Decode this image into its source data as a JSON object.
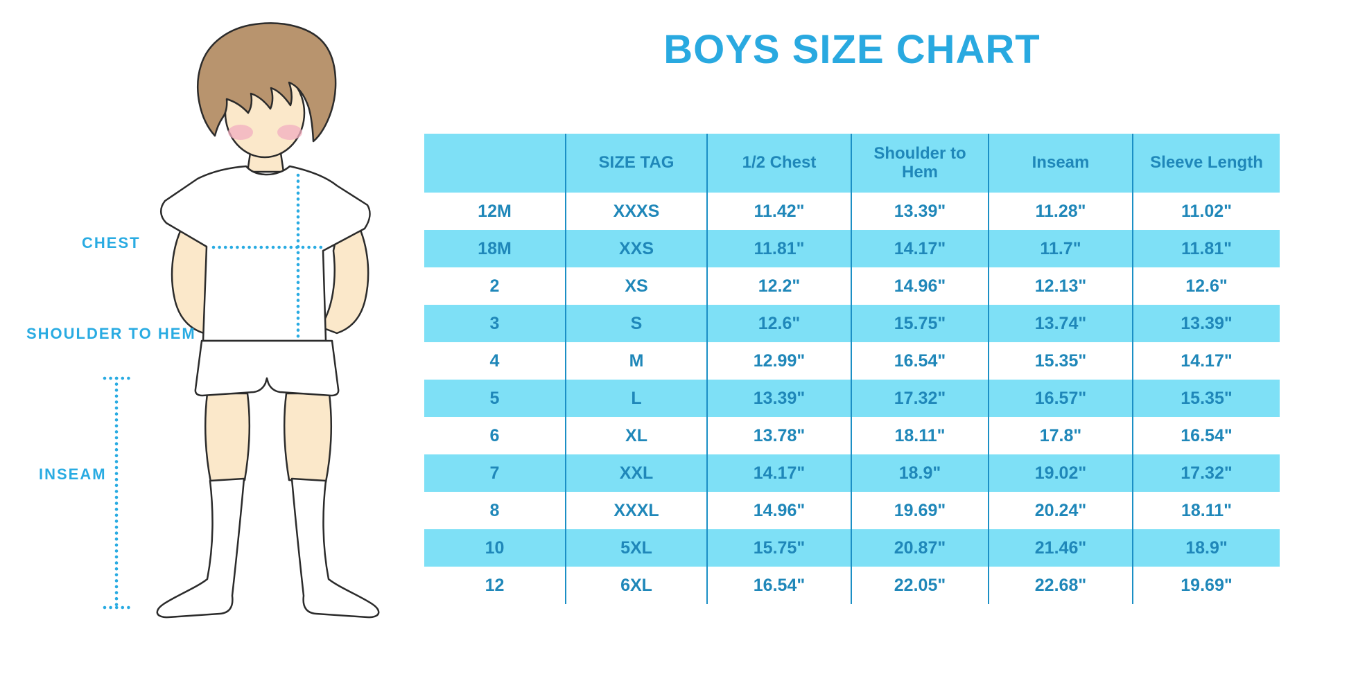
{
  "title": "BOYS SIZE CHART",
  "figure": {
    "labels": {
      "chest": "CHEST",
      "shoulder_to_hem": "SHOULDER TO HEM",
      "inseam": "INSEAM"
    },
    "illustration": "boy-in-white-tshirt-shorts-and-knee-socks"
  },
  "table": {
    "headers": [
      "",
      "SIZE TAG",
      "1/2 Chest",
      "Shoulder to Hem",
      "Inseam",
      "Sleeve Length"
    ],
    "rows": [
      [
        "12M",
        "XXXS",
        "11.42\"",
        "13.39\"",
        "11.28\"",
        "11.02\""
      ],
      [
        "18M",
        "XXS",
        "11.81\"",
        "14.17\"",
        "11.7\"",
        "11.81\""
      ],
      [
        "2",
        "XS",
        "12.2\"",
        "14.96\"",
        "12.13\"",
        "12.6\""
      ],
      [
        "3",
        "S",
        "12.6\"",
        "15.75\"",
        "13.74\"",
        "13.39\""
      ],
      [
        "4",
        "M",
        "12.99\"",
        "16.54\"",
        "15.35\"",
        "14.17\""
      ],
      [
        "5",
        "L",
        "13.39\"",
        "17.32\"",
        "16.57\"",
        "15.35\""
      ],
      [
        "6",
        "XL",
        "13.78\"",
        "18.11\"",
        "17.8\"",
        "16.54\""
      ],
      [
        "7",
        "XXL",
        "14.17\"",
        "18.9\"",
        "19.02\"",
        "17.32\""
      ],
      [
        "8",
        "XXXL",
        "14.96\"",
        "19.69\"",
        "20.24\"",
        "18.11\""
      ],
      [
        "10",
        "5XL",
        "15.75\"",
        "20.87\"",
        "21.46\"",
        "18.9\""
      ],
      [
        "12",
        "6XL",
        "16.54\"",
        "22.05\"",
        "22.68\"",
        "19.69\""
      ]
    ]
  },
  "colors": {
    "accent_blue": "#29A9E0",
    "stripe_bg": "#7EE0F6",
    "cell_text": "#1F87B9",
    "grid_line": "#1B8FC5",
    "dotted_line": "#29ABE2",
    "hair": "#B8946E",
    "skin": "#FBE8CA",
    "blush": "#F2AFC0",
    "outline": "#2B2B2B"
  },
  "chart_data": {
    "type": "table",
    "title": "BOYS SIZE CHART",
    "units": "inches",
    "columns": [
      "",
      "SIZE TAG",
      "1/2 Chest",
      "Shoulder to Hem",
      "Inseam",
      "Sleeve Length"
    ],
    "rows": [
      [
        "12M",
        "XXXS",
        "11.42\"",
        "13.39\"",
        "11.28\"",
        "11.02\""
      ],
      [
        "18M",
        "XXS",
        "11.81\"",
        "14.17\"",
        "11.7\"",
        "11.81\""
      ],
      [
        "2",
        "XS",
        "12.2\"",
        "14.96\"",
        "12.13\"",
        "12.6\""
      ],
      [
        "3",
        "S",
        "12.6\"",
        "15.75\"",
        "13.74\"",
        "13.39\""
      ],
      [
        "4",
        "M",
        "12.99\"",
        "16.54\"",
        "15.35\"",
        "14.17\""
      ],
      [
        "5",
        "L",
        "13.39\"",
        "17.32\"",
        "16.57\"",
        "15.35\""
      ],
      [
        "6",
        "XL",
        "13.78\"",
        "18.11\"",
        "17.8\"",
        "16.54\""
      ],
      [
        "7",
        "XXL",
        "14.17\"",
        "18.9\"",
        "19.02\"",
        "17.32\""
      ],
      [
        "8",
        "XXXL",
        "14.96\"",
        "19.69\"",
        "20.24\"",
        "18.11\""
      ],
      [
        "10",
        "5XL",
        "15.75\"",
        "20.87\"",
        "21.46\"",
        "18.9\""
      ],
      [
        "12",
        "6XL",
        "16.54\"",
        "22.05\"",
        "22.68\"",
        "19.69\""
      ]
    ]
  }
}
